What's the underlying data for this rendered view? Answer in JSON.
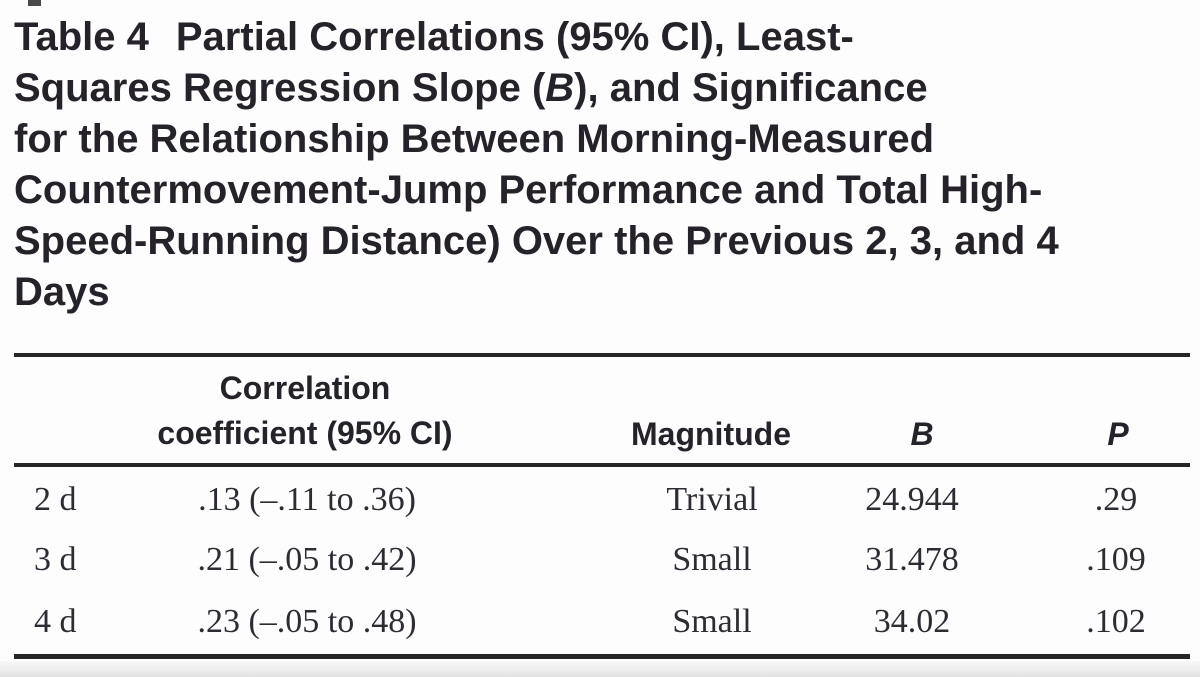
{
  "title": {
    "label": "Table 4",
    "line1_rest": "Partial Correlations (95% CI), Least-",
    "line2_pre": "Squares Regression Slope (",
    "line2_italic": "B",
    "line2_post": "), and Significance",
    "line3": "for the Relationship Between Morning-Measured",
    "line4": "Countermovement-Jump Performance and Total High-",
    "line5": "Speed-Running Distance) Over the Previous 2, 3, and 4",
    "line6": "Days"
  },
  "header": {
    "correlation_line1": "Correlation",
    "correlation_line2": "coefficient (95% CI)",
    "magnitude": "Magnitude",
    "b": "B",
    "p": "P"
  },
  "rows": [
    {
      "period": "2 d",
      "correlation": ".13 (–.11 to .36)",
      "magnitude": "Trivial",
      "b": "24.944",
      "p": ".29"
    },
    {
      "period": "3 d",
      "correlation": ".21 (–.05 to .42)",
      "magnitude": "Small",
      "b": "31.478",
      "p": ".109"
    },
    {
      "period": "4 d",
      "correlation": ".23 (–.05 to .48)",
      "magnitude": "Small",
      "b": "34.02",
      "p": ".102"
    }
  ],
  "colors": {
    "text": "#262229",
    "rule": "#262626",
    "background": "#fdfdfd",
    "scan_edge": "#e3e3e3"
  }
}
